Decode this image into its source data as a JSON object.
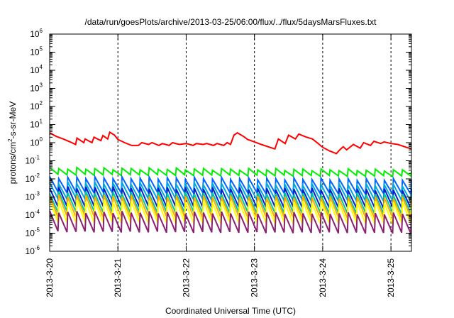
{
  "chart_data": {
    "type": "line",
    "title": "/data/run/goesPlots/archive/2013-03-25/06:00/flux/../flux/5daysMarsFluxes.txt",
    "xlabel": "Coordinated Universal Time (UTC)",
    "ylabel": {
      "prefix": "protons/cm",
      "sup": "2",
      "suffix": "-s-sr-MeV"
    },
    "yscale": "log",
    "ylim": [
      1e-06,
      1000000.0
    ],
    "y_tick_base": "10",
    "y_tick_exponents": [
      "-6",
      "-5",
      "-4",
      "-3",
      "-2",
      "-1",
      "0",
      "1",
      "2",
      "3",
      "4",
      "5",
      "6"
    ],
    "xlim": [
      0,
      5.3
    ],
    "x_ticks": [
      {
        "label": "2013-3-20",
        "x": 0
      },
      {
        "label": "2013-3-21",
        "x": 1
      },
      {
        "label": "2013-3-22",
        "x": 2
      },
      {
        "label": "2013-3-23",
        "x": 3
      },
      {
        "label": "2013-3-24",
        "x": 4
      },
      {
        "label": "2013-3-25",
        "x": 5
      }
    ],
    "grid_x": true,
    "grid_y": false,
    "series": [
      {
        "color": "#ff0000",
        "points": [
          [
            0.0,
            3.5
          ],
          [
            0.1,
            2.2
          ],
          [
            0.2,
            1.6
          ],
          [
            0.3,
            1.1
          ],
          [
            0.38,
            0.8
          ],
          [
            0.4,
            1.8
          ],
          [
            0.5,
            1.0
          ],
          [
            0.52,
            1.6
          ],
          [
            0.62,
            1.0
          ],
          [
            0.65,
            2.0
          ],
          [
            0.75,
            1.3
          ],
          [
            0.78,
            2.5
          ],
          [
            0.85,
            1.6
          ],
          [
            0.88,
            3.8
          ],
          [
            0.95,
            2.6
          ],
          [
            1.0,
            1.5
          ],
          [
            1.1,
            1.0
          ],
          [
            1.2,
            0.7
          ],
          [
            1.3,
            0.7
          ],
          [
            1.35,
            1.0
          ],
          [
            1.45,
            0.8
          ],
          [
            1.5,
            1.0
          ],
          [
            1.6,
            0.7
          ],
          [
            1.65,
            0.9
          ],
          [
            1.75,
            0.7
          ],
          [
            1.8,
            1.0
          ],
          [
            1.9,
            0.8
          ],
          [
            2.0,
            0.9
          ],
          [
            2.1,
            0.7
          ],
          [
            2.15,
            0.9
          ],
          [
            2.25,
            0.8
          ],
          [
            2.3,
            0.9
          ],
          [
            2.4,
            0.7
          ],
          [
            2.45,
            0.9
          ],
          [
            2.55,
            0.7
          ],
          [
            2.6,
            1.0
          ],
          [
            2.65,
            0.8
          ],
          [
            2.7,
            2.6
          ],
          [
            2.75,
            3.5
          ],
          [
            2.85,
            2.1
          ],
          [
            2.9,
            1.5
          ],
          [
            3.0,
            1.1
          ],
          [
            3.1,
            0.8
          ],
          [
            3.2,
            0.6
          ],
          [
            3.3,
            0.45
          ],
          [
            3.35,
            1.6
          ],
          [
            3.45,
            0.9
          ],
          [
            3.5,
            2.6
          ],
          [
            3.6,
            1.6
          ],
          [
            3.65,
            3.0
          ],
          [
            3.75,
            2.1
          ],
          [
            3.85,
            1.6
          ],
          [
            3.95,
            0.8
          ],
          [
            4.0,
            0.55
          ],
          [
            4.1,
            0.35
          ],
          [
            4.2,
            0.25
          ],
          [
            4.25,
            0.4
          ],
          [
            4.3,
            0.6
          ],
          [
            4.35,
            0.4
          ],
          [
            4.45,
            0.8
          ],
          [
            4.55,
            0.5
          ],
          [
            4.6,
            1.0
          ],
          [
            4.7,
            0.7
          ],
          [
            4.75,
            1.2
          ],
          [
            4.85,
            0.9
          ],
          [
            4.9,
            1.1
          ],
          [
            5.0,
            0.9
          ],
          [
            5.1,
            0.8
          ],
          [
            5.2,
            0.6
          ],
          [
            5.3,
            0.45
          ]
        ]
      },
      {
        "color": "#00ee00",
        "sawtooth": {
          "peak": 0.038,
          "trough": 0.017,
          "end_peak": 0.03,
          "end_trough": 0.014
        }
      },
      {
        "color": "#0066ff",
        "sawtooth": {
          "peak": 0.012,
          "trough": 0.0018,
          "end_peak": 0.009,
          "end_trough": 0.0015
        }
      },
      {
        "color": "#00aadd",
        "sawtooth": {
          "peak": 0.006,
          "trough": 0.0008,
          "end_peak": 0.0045,
          "end_trough": 0.0006
        }
      },
      {
        "color": "#0022cc",
        "sawtooth": {
          "peak": 0.0035,
          "trough": 0.0003,
          "end_peak": 0.0025,
          "end_trough": 0.00025
        }
      },
      {
        "color": "#00c8a0",
        "sawtooth": {
          "peak": 0.0018,
          "trough": 0.00015,
          "end_peak": 0.0014,
          "end_trough": 0.00012
        }
      },
      {
        "color": "#ffaa00",
        "sawtooth": {
          "peak": 0.0012,
          "trough": 8e-05,
          "end_peak": 0.0009,
          "end_trough": 7e-05
        }
      },
      {
        "color": "#ffff00",
        "sawtooth": {
          "peak": 0.0006,
          "trough": 4e-05,
          "end_peak": 0.0005,
          "end_trough": 3.5e-05
        }
      },
      {
        "color": "#8a2070",
        "sawtooth": {
          "peak": 0.00015,
          "trough": 1.2e-05,
          "end_peak": 0.00012,
          "end_trough": 1e-05
        }
      }
    ]
  }
}
